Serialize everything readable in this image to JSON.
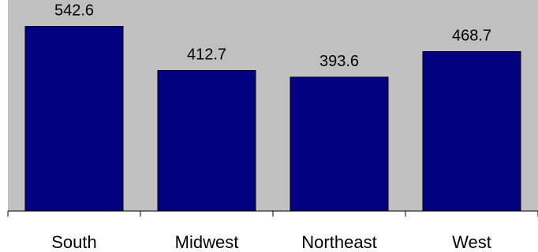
{
  "chart_data": {
    "type": "bar",
    "categories": [
      "South",
      "Midwest",
      "Northeast",
      "West"
    ],
    "values": [
      542.6,
      412.7,
      393.6,
      468.7
    ],
    "value_labels": [
      "542.6",
      "412.7",
      "393.6",
      "468.7"
    ],
    "title": "",
    "xlabel": "",
    "ylabel": "",
    "ylim": [
      0,
      620
    ],
    "grid": false,
    "legend": "none",
    "colors": {
      "bar_fill": "#000080",
      "bar_stroke": "#000000",
      "plot_background": "#c0c0c0",
      "page_background": "#ffffff"
    }
  }
}
